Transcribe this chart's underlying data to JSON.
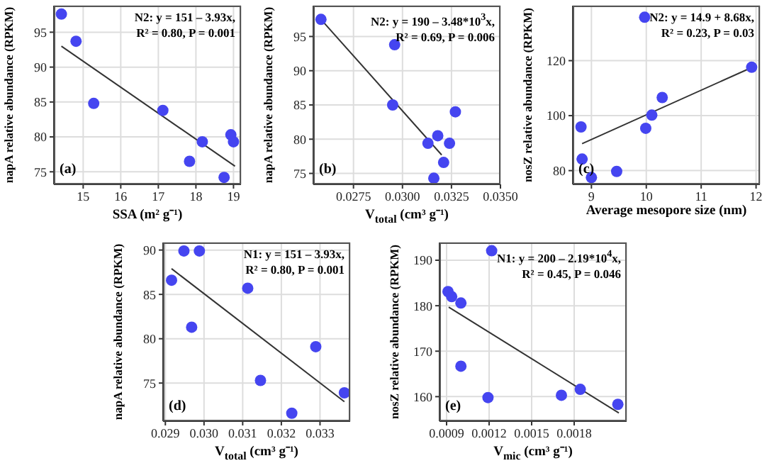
{
  "chart_data": [
    {
      "type": "scatter",
      "xlabel": "SSA (m² g⁻¹)",
      "ylabel": "napA relative abundance (RPKM)",
      "annotations": [
        "(a)",
        "N2: y = 151 – 3.93x,",
        "R² = 0.80, P = 0.001"
      ],
      "xlim": [
        14.22,
        19.2
      ],
      "ylim": [
        73.2,
        98.8
      ],
      "xticks": [
        15,
        16,
        17,
        18,
        19
      ],
      "yticks": [
        75,
        80,
        85,
        90,
        95
      ],
      "grid": true,
      "series": [
        {
          "type": "scatter",
          "marker": "circle",
          "color": "#4545f0",
          "x": [
            14.42,
            14.81,
            15.28,
            17.12,
            17.83,
            18.17,
            18.75,
            18.93,
            19.0
          ],
          "values": [
            97.6,
            93.7,
            84.8,
            83.8,
            76.5,
            79.3,
            74.2,
            80.3,
            79.3
          ]
        },
        {
          "type": "line",
          "color": "#333333",
          "x": [
            14.42,
            19.04
          ],
          "values": [
            93.0,
            75.8
          ]
        }
      ]
    },
    {
      "type": "scatter",
      "xlabel": "V$_{total}$ (cm³ g⁻¹)",
      "ylabel": "napA relative abundance (RPKM)",
      "annotations": [
        "(b)",
        "N2: y = 190 – 3.48*10$^{3}$x,",
        "R² = 0.69, P = 0.006"
      ],
      "xlim": [
        0.02545,
        0.035
      ],
      "ylim": [
        73.4,
        99.5
      ],
      "xticks": [
        {
          "value": 0.0275,
          "label": "0.0275"
        },
        {
          "value": 0.03,
          "label": "0.0300"
        },
        {
          "value": 0.0325,
          "label": "0.0325"
        },
        {
          "value": 0.035,
          "label": "0.0350"
        }
      ],
      "yticks": [
        75,
        80,
        85,
        90,
        95
      ],
      "grid": true,
      "series": [
        {
          "type": "scatter",
          "marker": "circle",
          "color": "#4545f0",
          "x": [
            0.02584,
            0.0296,
            0.0295,
            0.0313,
            0.0318,
            0.0324,
            0.0327,
            0.0321,
            0.0316
          ],
          "values": [
            97.5,
            93.8,
            85,
            79.4,
            80.5,
            79.4,
            84,
            76.6,
            74.3
          ]
        },
        {
          "type": "line",
          "color": "#333333",
          "x": [
            0.02584,
            0.032
          ],
          "values": [
            97.5,
            77.7
          ]
        }
      ]
    },
    {
      "type": "scatter",
      "xlabel": "Average mesopore size (nm)",
      "ylabel": "nosZ relative abundance (RPKM)",
      "annotations": [
        "(c)",
        "N2: y = 14.9 + 8.68x,",
        "R² = 0.23, P = 0.03"
      ],
      "xlim": [
        8.66,
        12.07
      ],
      "ylim": [
        75,
        140
      ],
      "xticks": [
        9,
        10,
        11,
        12
      ],
      "yticks": [
        80,
        100,
        120
      ],
      "grid": true,
      "series": [
        {
          "type": "scatter",
          "marker": "circle",
          "color": "#4545f0",
          "x": [
            9.97,
            11.92,
            10.29,
            10.1,
            9.99,
            8.81,
            8.83,
            9.0,
            9.46
          ],
          "values": [
            135.8,
            117.6,
            106.6,
            100.2,
            95.4,
            95.9,
            84.2,
            77.5,
            79.7
          ]
        },
        {
          "type": "line",
          "color": "#333333",
          "x": [
            8.83,
            11.92
          ],
          "values": [
            89.8,
            117.5
          ]
        }
      ]
    },
    {
      "type": "scatter",
      "xlabel": "V$_{total}$ (cm³ g⁻¹)",
      "ylabel": "napA relative abundance (RPKM)",
      "annotations": [
        "(d)",
        "N1: y = 151 – 3.93x,",
        "R² = 0.80, P = 0.001"
      ],
      "xlim": [
        0.02894,
        0.03378
      ],
      "ylim": [
        70.7,
        90.85
      ],
      "xticks": [
        {
          "value": 0.029,
          "label": "0.029"
        },
        {
          "value": 0.03,
          "label": "0.030"
        },
        {
          "value": 0.031,
          "label": "0.031"
        },
        {
          "value": 0.032,
          "label": "0.032"
        },
        {
          "value": 0.033,
          "label": "0.033"
        }
      ],
      "yticks": [
        75,
        80,
        85,
        90
      ],
      "grid": true,
      "series": [
        {
          "type": "scatter",
          "marker": "circle",
          "color": "#4545f0",
          "x": [
            0.02916,
            0.02948,
            0.02988,
            0.02968,
            0.03113,
            0.03146,
            0.03227,
            0.03289,
            0.03363
          ],
          "values": [
            86.6,
            89.9,
            89.9,
            81.3,
            85.7,
            75.3,
            71.6,
            79.1,
            73.9
          ]
        },
        {
          "type": "line",
          "color": "#333333",
          "x": [
            0.02916,
            0.03363
          ],
          "values": [
            87.9,
            72.9
          ]
        }
      ]
    },
    {
      "type": "scatter",
      "xlabel": "V$_{mic}$ (cm³ g⁻¹)",
      "ylabel": "nosZ relative abundance (RPKM)",
      "annotations": [
        "(e)",
        "N1: y = 200 – 2.19*10$^{4}$x,",
        "R² = 0.45, P = 0.046"
      ],
      "xlim": [
        0.00085,
        0.00217
      ],
      "ylim": [
        154.6,
        193.9
      ],
      "xticks": [
        {
          "value": 0.0009,
          "label": "0.0009"
        },
        {
          "value": 0.0012,
          "label": "0.0012"
        },
        {
          "value": 0.0015,
          "label": "0.0015"
        },
        {
          "value": 0.0018,
          "label": "0.0018"
        }
      ],
      "yticks": [
        160,
        170,
        180,
        190
      ],
      "grid": true,
      "series": [
        {
          "type": "scatter",
          "marker": "circle",
          "color": "#4545f0",
          "x": [
            0.00091,
            0.000936,
            0.001001,
            0.001001,
            0.001218,
            0.001192,
            0.00171,
            0.001843,
            0.002108
          ],
          "values": [
            183.1,
            182.0,
            180.6,
            166.7,
            192.1,
            159.8,
            160.3,
            161.6,
            158.3
          ]
        },
        {
          "type": "line",
          "color": "#333333",
          "x": [
            0.000915,
            0.002115
          ],
          "values": [
            179.7,
            156.4
          ]
        }
      ]
    }
  ]
}
